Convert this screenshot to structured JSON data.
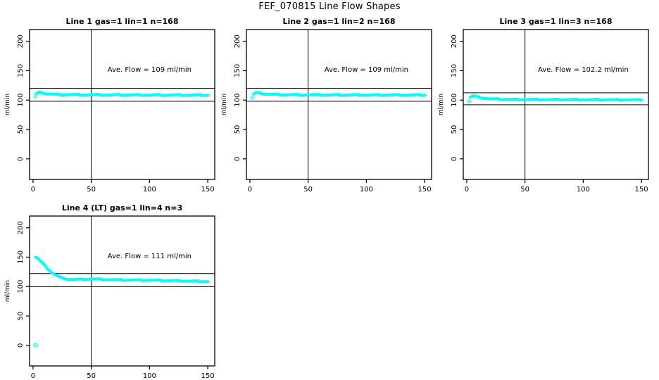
{
  "title": "FEF_070815  Line Flow Shapes",
  "marker_color": "#00FFFF",
  "axis_color": "#000000",
  "chart_data": [
    {
      "type": "scatter",
      "title": "Line 1 gas=1 lin=1 n=168",
      "annotation": "Ave. Flow =  109  ml/min",
      "ave_flow": 109,
      "n": 168,
      "ylabel": "ml/min",
      "x_ticks": [
        0,
        50,
        100,
        150
      ],
      "y_ticks": [
        0,
        50,
        100,
        150,
        200
      ],
      "xlim": [
        -3,
        156
      ],
      "ylim": [
        -35,
        220
      ],
      "ref_lines_y": [
        119.9,
        98.1
      ],
      "ref_line_x": 50,
      "gap_after_first": true,
      "points": [
        [
          2,
          106.5
        ],
        [
          3,
          111
        ],
        [
          5,
          113
        ],
        [
          8,
          112.5
        ],
        [
          12,
          110.5
        ],
        [
          20,
          109.5
        ],
        [
          40,
          109
        ],
        [
          80,
          108.8
        ],
        [
          150,
          108.5
        ]
      ],
      "outliers": []
    },
    {
      "type": "scatter",
      "title": "Line 2 gas=1 lin=2 n=168",
      "annotation": "Ave. Flow =  109  ml/min",
      "ave_flow": 109,
      "n": 168,
      "ylabel": "ml/min",
      "x_ticks": [
        0,
        50,
        100,
        150
      ],
      "y_ticks": [
        0,
        50,
        100,
        150,
        200
      ],
      "xlim": [
        -3,
        156
      ],
      "ylim": [
        -35,
        220
      ],
      "ref_lines_y": [
        119.9,
        98.1
      ],
      "ref_line_x": 50,
      "gap_after_first": true,
      "points": [
        [
          2,
          104
        ],
        [
          3,
          110
        ],
        [
          5,
          112.5
        ],
        [
          8,
          112
        ],
        [
          12,
          110.5
        ],
        [
          20,
          109.5
        ],
        [
          40,
          109
        ],
        [
          80,
          108.8
        ],
        [
          150,
          108.7
        ]
      ],
      "outliers": []
    },
    {
      "type": "scatter",
      "title": "Line 3 gas=1 lin=3 n=168",
      "annotation": "Ave. Flow =  102.2  ml/min",
      "ave_flow": 102.2,
      "n": 168,
      "ylabel": "ml/min",
      "x_ticks": [
        0,
        50,
        100,
        150
      ],
      "y_ticks": [
        0,
        50,
        100,
        150,
        200
      ],
      "xlim": [
        -3,
        156
      ],
      "ylim": [
        -35,
        220
      ],
      "ref_lines_y": [
        112.4,
        92.0
      ],
      "ref_line_x": 50,
      "gap_after_first": true,
      "points": [
        [
          2,
          98
        ],
        [
          3,
          105
        ],
        [
          5,
          107
        ],
        [
          8,
          106
        ],
        [
          12,
          104
        ],
        [
          20,
          102
        ],
        [
          40,
          101
        ],
        [
          80,
          100.8
        ],
        [
          150,
          100.3
        ]
      ],
      "outliers": []
    },
    {
      "type": "scatter",
      "title": "Line 4 (LT) gas=1 lin=4 n=3",
      "annotation": "Ave. Flow =  111  ml/min",
      "ave_flow": 111,
      "n": 3,
      "ylabel": "ml/min",
      "x_ticks": [
        0,
        50,
        100,
        150
      ],
      "y_ticks": [
        0,
        50,
        100,
        150,
        200
      ],
      "xlim": [
        -3,
        156
      ],
      "ylim": [
        -35,
        220
      ],
      "ref_lines_y": [
        122.1,
        99.9
      ],
      "ref_line_x": 50,
      "gap_after_first": false,
      "points": [
        [
          2,
          150
        ],
        [
          3,
          149.5
        ],
        [
          5,
          146
        ],
        [
          8,
          140
        ],
        [
          12,
          131
        ],
        [
          16,
          124
        ],
        [
          20,
          118.5
        ],
        [
          25,
          114.5
        ],
        [
          30,
          112.5
        ],
        [
          35,
          112
        ],
        [
          45,
          112.5
        ],
        [
          50,
          113
        ],
        [
          60,
          112
        ],
        [
          70,
          111.5
        ],
        [
          80,
          111
        ],
        [
          90,
          111
        ],
        [
          100,
          110.7
        ],
        [
          110,
          110.3
        ],
        [
          120,
          110
        ],
        [
          130,
          109.5
        ],
        [
          140,
          109
        ],
        [
          150,
          108.5
        ]
      ],
      "outliers": [
        [
          2,
          0.5
        ]
      ]
    }
  ]
}
